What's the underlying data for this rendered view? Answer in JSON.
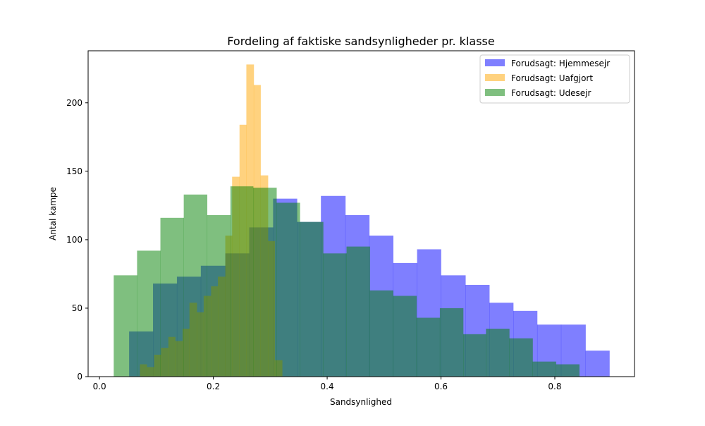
{
  "chart_data": {
    "type": "histogram",
    "title": "Fordeling af faktiske sandsynligheder pr. klasse",
    "xlabel": "Sandsynlighed",
    "ylabel": "Antal kampe",
    "xlim": [
      -0.02,
      0.94
    ],
    "ylim": [
      0,
      238
    ],
    "xticks": [
      0.0,
      0.2,
      0.4,
      0.6,
      0.8
    ],
    "xtick_labels": [
      "0.0",
      "0.2",
      "0.4",
      "0.6",
      "0.8"
    ],
    "yticks": [
      0,
      50,
      100,
      150,
      200
    ],
    "ytick_labels": [
      "0",
      "50",
      "100",
      "150",
      "200"
    ],
    "grid": false,
    "legend_position": "top-right",
    "alpha": 0.5,
    "series": [
      {
        "name": "Forudsagt: Hjemmesejr",
        "color": "#0000ff",
        "bins": [
          {
            "x0": 0.052,
            "x1": 0.094,
            "count": 33
          },
          {
            "x0": 0.094,
            "x1": 0.136,
            "count": 68
          },
          {
            "x0": 0.136,
            "x1": 0.178,
            "count": 73
          },
          {
            "x0": 0.178,
            "x1": 0.221,
            "count": 81
          },
          {
            "x0": 0.221,
            "x1": 0.263,
            "count": 90
          },
          {
            "x0": 0.263,
            "x1": 0.305,
            "count": 109
          },
          {
            "x0": 0.305,
            "x1": 0.347,
            "count": 130
          },
          {
            "x0": 0.347,
            "x1": 0.389,
            "count": 113
          },
          {
            "x0": 0.389,
            "x1": 0.432,
            "count": 132
          },
          {
            "x0": 0.432,
            "x1": 0.474,
            "count": 118
          },
          {
            "x0": 0.474,
            "x1": 0.516,
            "count": 103
          },
          {
            "x0": 0.516,
            "x1": 0.558,
            "count": 83
          },
          {
            "x0": 0.558,
            "x1": 0.6,
            "count": 93
          },
          {
            "x0": 0.6,
            "x1": 0.643,
            "count": 74
          },
          {
            "x0": 0.643,
            "x1": 0.685,
            "count": 67
          },
          {
            "x0": 0.685,
            "x1": 0.727,
            "count": 54
          },
          {
            "x0": 0.727,
            "x1": 0.769,
            "count": 48
          },
          {
            "x0": 0.769,
            "x1": 0.811,
            "count": 38
          },
          {
            "x0": 0.811,
            "x1": 0.854,
            "count": 38
          },
          {
            "x0": 0.854,
            "x1": 0.896,
            "count": 19
          }
        ]
      },
      {
        "name": "Forudsagt: Uafgjort",
        "color": "#ffa500",
        "bins": [
          {
            "x0": 0.071,
            "x1": 0.083,
            "count": 9
          },
          {
            "x0": 0.083,
            "x1": 0.096,
            "count": 7
          },
          {
            "x0": 0.096,
            "x1": 0.108,
            "count": 16
          },
          {
            "x0": 0.108,
            "x1": 0.121,
            "count": 21
          },
          {
            "x0": 0.121,
            "x1": 0.133,
            "count": 29
          },
          {
            "x0": 0.133,
            "x1": 0.146,
            "count": 26
          },
          {
            "x0": 0.146,
            "x1": 0.158,
            "count": 35
          },
          {
            "x0": 0.158,
            "x1": 0.171,
            "count": 54
          },
          {
            "x0": 0.171,
            "x1": 0.183,
            "count": 47
          },
          {
            "x0": 0.183,
            "x1": 0.196,
            "count": 59
          },
          {
            "x0": 0.196,
            "x1": 0.208,
            "count": 66
          },
          {
            "x0": 0.208,
            "x1": 0.221,
            "count": 73
          },
          {
            "x0": 0.221,
            "x1": 0.233,
            "count": 103
          },
          {
            "x0": 0.233,
            "x1": 0.246,
            "count": 146
          },
          {
            "x0": 0.246,
            "x1": 0.258,
            "count": 184
          },
          {
            "x0": 0.258,
            "x1": 0.271,
            "count": 228
          },
          {
            "x0": 0.271,
            "x1": 0.283,
            "count": 213
          },
          {
            "x0": 0.283,
            "x1": 0.296,
            "count": 147
          },
          {
            "x0": 0.296,
            "x1": 0.308,
            "count": 99
          },
          {
            "x0": 0.308,
            "x1": 0.321,
            "count": 12
          }
        ]
      },
      {
        "name": "Forudsagt: Udesejr",
        "color": "#008000",
        "bins": [
          {
            "x0": 0.025,
            "x1": 0.066,
            "count": 74
          },
          {
            "x0": 0.066,
            "x1": 0.107,
            "count": 92
          },
          {
            "x0": 0.107,
            "x1": 0.148,
            "count": 116
          },
          {
            "x0": 0.148,
            "x1": 0.189,
            "count": 133
          },
          {
            "x0": 0.189,
            "x1": 0.23,
            "count": 118
          },
          {
            "x0": 0.23,
            "x1": 0.27,
            "count": 139
          },
          {
            "x0": 0.27,
            "x1": 0.311,
            "count": 138
          },
          {
            "x0": 0.311,
            "x1": 0.352,
            "count": 127
          },
          {
            "x0": 0.352,
            "x1": 0.393,
            "count": 113
          },
          {
            "x0": 0.393,
            "x1": 0.434,
            "count": 90
          },
          {
            "x0": 0.434,
            "x1": 0.475,
            "count": 95
          },
          {
            "x0": 0.475,
            "x1": 0.516,
            "count": 63
          },
          {
            "x0": 0.516,
            "x1": 0.557,
            "count": 59
          },
          {
            "x0": 0.557,
            "x1": 0.598,
            "count": 43
          },
          {
            "x0": 0.598,
            "x1": 0.639,
            "count": 50
          },
          {
            "x0": 0.639,
            "x1": 0.679,
            "count": 31
          },
          {
            "x0": 0.679,
            "x1": 0.72,
            "count": 35
          },
          {
            "x0": 0.72,
            "x1": 0.761,
            "count": 28
          },
          {
            "x0": 0.761,
            "x1": 0.802,
            "count": 11
          },
          {
            "x0": 0.802,
            "x1": 0.843,
            "count": 9
          }
        ]
      }
    ]
  }
}
